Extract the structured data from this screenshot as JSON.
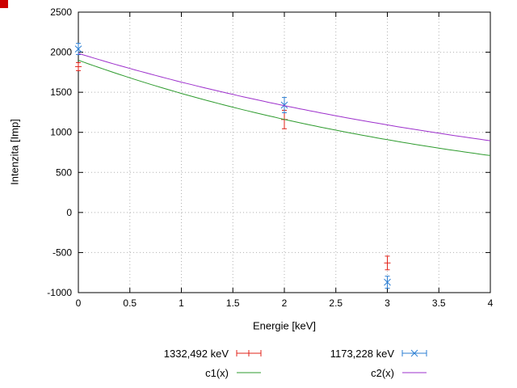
{
  "page": {
    "corner_marker_color": "#cc0000",
    "background": "#ffffff",
    "grid_color": "#b0b0b0",
    "border_color": "#000000",
    "text_color": "#000000"
  },
  "chart_data": {
    "type": "line",
    "title": "",
    "xlabel": "Energie [keV]",
    "ylabel": "Intenzita [Imp]",
    "xlim": [
      0,
      4
    ],
    "ylim": [
      -1000,
      2500
    ],
    "xticks": [
      0,
      0.5,
      1,
      1.5,
      2,
      2.5,
      3,
      3.5,
      4
    ],
    "yticks": [
      -1000,
      -500,
      0,
      500,
      1000,
      1500,
      2000,
      2500
    ],
    "grid": true,
    "legend_position": "below",
    "series": [
      {
        "name": "1332,492 keV",
        "style": "errorbars",
        "marker": "plus",
        "color": "#e2231a",
        "points": [
          {
            "x": 0,
            "y": 1820,
            "err": 50
          },
          {
            "x": 2,
            "y": 1160,
            "err": 115
          },
          {
            "x": 3,
            "y": -630,
            "err": 85
          }
        ]
      },
      {
        "name": "1173,228 keV",
        "style": "errorbars",
        "marker": "cross",
        "color": "#2d7fd3",
        "points": [
          {
            "x": 0,
            "y": 2040,
            "err": 70
          },
          {
            "x": 2,
            "y": 1340,
            "err": 95
          },
          {
            "x": 3,
            "y": -870,
            "err": 75
          }
        ]
      },
      {
        "name": "c1(x)",
        "style": "curve",
        "color": "#2e9b2e",
        "formula": "a*exp(-b*x)",
        "a": 1900,
        "b": 0.246,
        "x_range": [
          0,
          4
        ]
      },
      {
        "name": "c2(x)",
        "style": "curve",
        "color": "#9d30cc",
        "formula": "a*exp(-b*x)",
        "a": 1985,
        "b": 0.199,
        "x_range": [
          0,
          4
        ]
      }
    ]
  }
}
